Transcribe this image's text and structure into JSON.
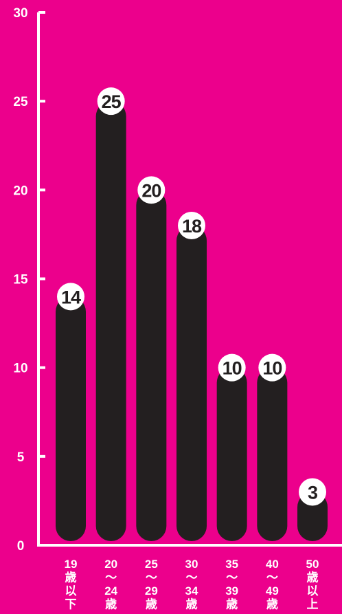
{
  "colors": {
    "background": "#EC008C",
    "bar": "#231F20",
    "axis": "#ffffff",
    "text": "#ffffff",
    "value_text": "#231F20"
  },
  "chart_data": {
    "type": "bar",
    "categories": [
      [
        "19",
        "歳",
        "以",
        "下"
      ],
      [
        "20",
        "〜",
        "24",
        "歳"
      ],
      [
        "25",
        "〜",
        "29",
        "歳"
      ],
      [
        "30",
        "〜",
        "34",
        "歳"
      ],
      [
        "35",
        "〜",
        "39",
        "歳"
      ],
      [
        "40",
        "〜",
        "49",
        "歳"
      ],
      [
        "50",
        "歳",
        "以",
        "上"
      ]
    ],
    "values": [
      14,
      25,
      20,
      18,
      10,
      10,
      3
    ],
    "value_labels": [
      "14",
      "25",
      "20",
      "18",
      "10",
      "10",
      "3"
    ],
    "y_ticks": [
      "0",
      "5",
      "10",
      "15",
      "20",
      "25",
      "30"
    ],
    "ylim": [
      0,
      30
    ],
    "grid": false,
    "title": "",
    "xlabel": "",
    "ylabel": ""
  }
}
